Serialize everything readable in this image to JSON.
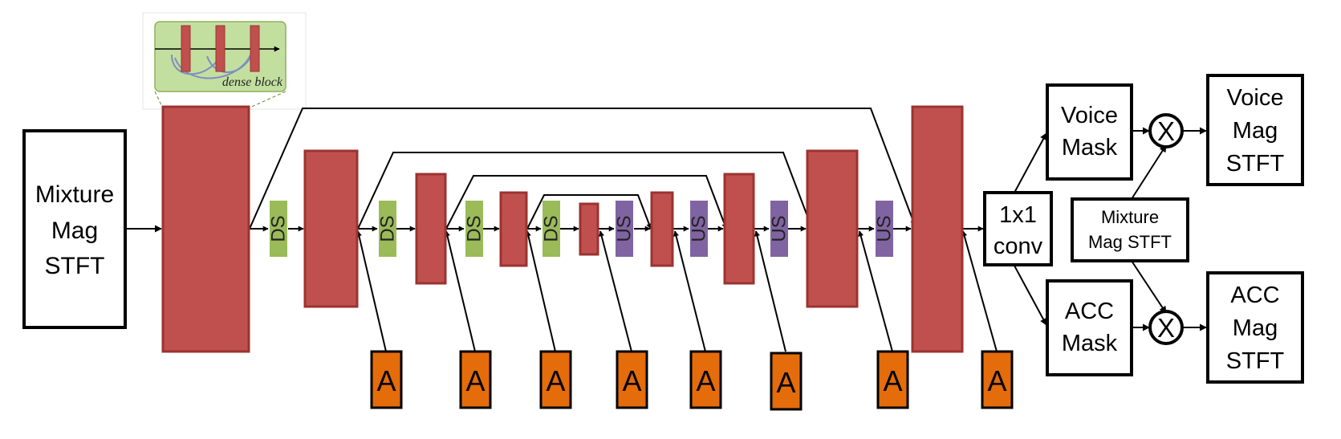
{
  "colors": {
    "dense_block": "#c0504d",
    "dense_block_stroke": "#9b3331",
    "downsample": "#9bbb59",
    "upsample": "#8064a2",
    "attention": "#e46c0a",
    "inset_bg": "#c3dfa0",
    "inset_curve": "#7f8ec0"
  },
  "input": {
    "label_lines": [
      "Mixture",
      "Mag",
      "STFT"
    ]
  },
  "inset": {
    "label": "dense block"
  },
  "downsample_label": "DS",
  "upsample_label": "US",
  "attention_label": "A",
  "conv": {
    "label_lines": [
      "1x1",
      "conv"
    ]
  },
  "voice_mask": {
    "label_lines": [
      "Voice",
      "Mask"
    ]
  },
  "acc_mask": {
    "label_lines": [
      "ACC",
      "Mask"
    ]
  },
  "mixture_ref": {
    "label_lines": [
      "Mixture",
      "Mag STFT"
    ]
  },
  "multiply_symbol": "X",
  "voice_output": {
    "label_lines": [
      "Voice",
      "Mag",
      "STFT"
    ]
  },
  "acc_output": {
    "label_lines": [
      "ACC",
      "Mag",
      "STFT"
    ]
  }
}
